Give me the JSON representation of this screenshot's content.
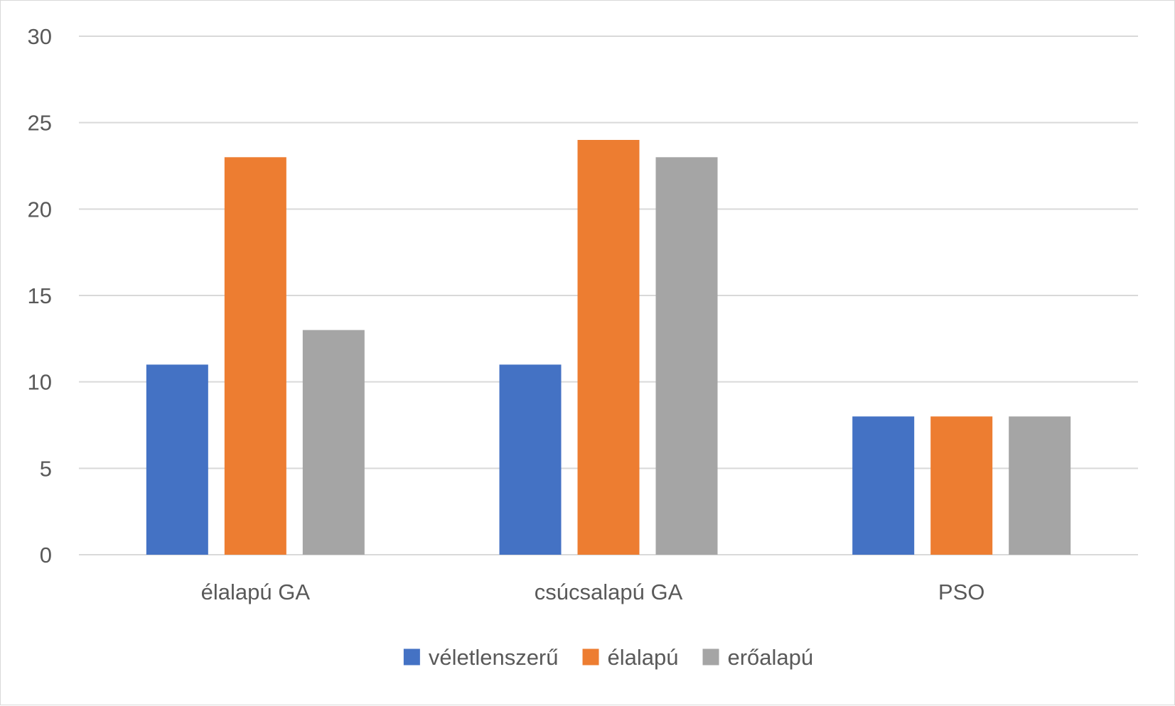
{
  "chart_data": {
    "type": "bar",
    "title": "",
    "xlabel": "",
    "ylabel": "",
    "categories": [
      "élalapú GA",
      "csúcsalapú GA",
      "PSO"
    ],
    "series": [
      {
        "name": "véletlenszerű",
        "color": "#4472C4",
        "values": [
          11,
          11,
          8
        ]
      },
      {
        "name": "élalapú",
        "color": "#ED7D31",
        "values": [
          23,
          24,
          8
        ]
      },
      {
        "name": "erőalapú",
        "color": "#A5A5A5",
        "values": [
          13,
          23,
          8
        ]
      }
    ],
    "ylim": [
      0,
      30
    ],
    "yticks": [
      0,
      5,
      10,
      15,
      20,
      25,
      30
    ],
    "grid": true,
    "legend_position": "bottom"
  }
}
